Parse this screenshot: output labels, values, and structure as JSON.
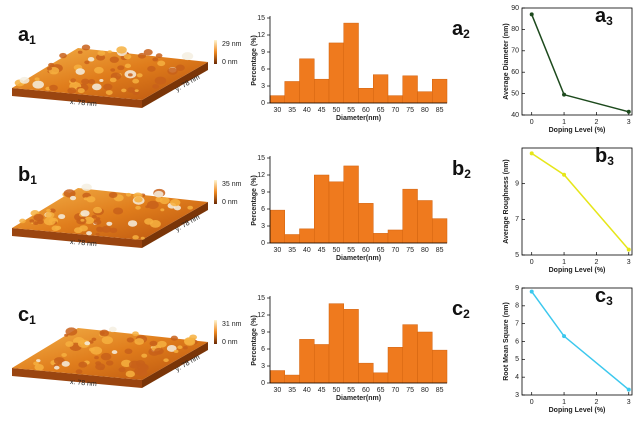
{
  "images": [
    {
      "label": "a",
      "label_sub": "1",
      "z_max": "29 nm",
      "z_min": "0 nm",
      "x_size": "x: 78 nm",
      "y_size": "y: 78 nm"
    },
    {
      "label": "b",
      "label_sub": "1",
      "z_max": "35 nm",
      "z_min": "0 nm",
      "x_size": "x: 78 nm",
      "y_size": "y: 78 nm"
    },
    {
      "label": "c",
      "label_sub": "1",
      "z_max": "31 nm",
      "z_min": "0 nm",
      "x_size": "x: 78 nm",
      "y_size": "y: 78 nm"
    }
  ],
  "chart_data": [
    {
      "type": "bar",
      "label": "a",
      "label_sub": "2",
      "x_label": "Diameter(nm)",
      "y_label": "Percentage (%)",
      "color": "#ef7a1e",
      "categories": [
        "30",
        "35",
        "40",
        "45",
        "50",
        "55",
        "60",
        "65",
        "70",
        "75",
        "80",
        "85"
      ],
      "values": [
        1.3,
        3.8,
        7.8,
        4.2,
        10.6,
        14.1,
        2.6,
        5,
        1.3,
        4.8,
        2,
        4.2
      ],
      "ylim": [
        0,
        15
      ],
      "yticks": [
        0,
        3,
        6,
        9,
        12,
        15
      ]
    },
    {
      "type": "line",
      "label": "a",
      "label_sub": "3",
      "x_label": "Doping Level (%)",
      "y_label": "Average Diameter (nm)",
      "color": "#1d4a1d",
      "x": [
        0,
        1,
        3
      ],
      "values": [
        87,
        49.5,
        41.5
      ],
      "xlim": [
        -0.3,
        3.1
      ],
      "xticks": [
        0,
        1,
        2,
        3
      ],
      "ylim": [
        40,
        90
      ],
      "yticks": [
        40,
        50,
        60,
        70,
        80,
        90
      ]
    },
    {
      "type": "bar",
      "label": "b",
      "label_sub": "2",
      "x_label": "Diameter(nm)",
      "y_label": "Percentage (%)",
      "color": "#ef7a1e",
      "categories": [
        "30",
        "35",
        "40",
        "45",
        "50",
        "55",
        "60",
        "65",
        "70",
        "75",
        "80",
        "85"
      ],
      "values": [
        5.8,
        1.5,
        2.5,
        12,
        10.8,
        13.6,
        7,
        1.7,
        2.3,
        9.5,
        7.5,
        4.3
      ],
      "ylim": [
        0,
        15
      ],
      "yticks": [
        0,
        3,
        6,
        9,
        12,
        15
      ]
    },
    {
      "type": "line",
      "label": "b",
      "label_sub": "3",
      "x_label": "Doping Level (%)",
      "y_label": "Average Roughness (nm)",
      "color": "#e6e619",
      "x": [
        0,
        1,
        3
      ],
      "values": [
        10.7,
        9.5,
        5.3
      ],
      "xlim": [
        -0.3,
        3.1
      ],
      "xticks": [
        0,
        1,
        2,
        3
      ],
      "ylim": [
        5,
        11
      ],
      "yticks": [
        5,
        7,
        9
      ]
    },
    {
      "type": "bar",
      "label": "c",
      "label_sub": "2",
      "x_label": "Diameter(nm)",
      "y_label": "Percentage (%)",
      "color": "#ef7a1e",
      "categories": [
        "30",
        "35",
        "40",
        "45",
        "50",
        "55",
        "60",
        "65",
        "70",
        "75",
        "80",
        "85"
      ],
      "values": [
        2.2,
        1.4,
        7.7,
        6.8,
        14,
        13,
        3.5,
        1.8,
        6.3,
        10.3,
        9,
        5.8
      ],
      "ylim": [
        0,
        15
      ],
      "yticks": [
        0,
        3,
        6,
        9,
        12,
        15
      ]
    },
    {
      "type": "line",
      "label": "c",
      "label_sub": "3",
      "x_label": "Doping Level (%)",
      "y_label": "Root Mean Square (nm)",
      "color": "#3cc8ee",
      "x": [
        0,
        1,
        3
      ],
      "values": [
        8.8,
        6.3,
        3.3
      ],
      "xlim": [
        -0.3,
        3.1
      ],
      "xticks": [
        0,
        1,
        2,
        3
      ],
      "ylim": [
        3,
        9
      ],
      "yticks": [
        3,
        4,
        5,
        6,
        7,
        8,
        9
      ]
    }
  ]
}
